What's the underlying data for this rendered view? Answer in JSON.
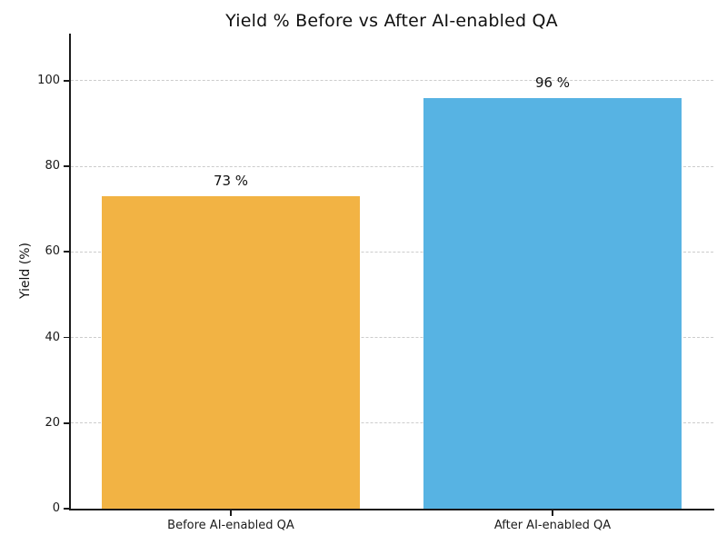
{
  "chart_data": {
    "type": "bar",
    "title": "Yield % Before vs After AI-enabled QA",
    "ylabel": "Yield (%)",
    "xlabel": "",
    "categories": [
      "Before AI-enabled QA",
      "After AI-enabled QA"
    ],
    "values": [
      73,
      96
    ],
    "bar_value_labels": [
      "73 %",
      "96 %"
    ],
    "bar_colors": [
      "#f2b344",
      "#57b3e3"
    ],
    "yticks": [
      0,
      20,
      40,
      60,
      80,
      100
    ],
    "ylim": [
      0,
      111
    ],
    "grid": "horizontal-dashed",
    "gridline_color": "#cccccc",
    "legend_position": "none",
    "bar_width_fraction": 0.8
  }
}
